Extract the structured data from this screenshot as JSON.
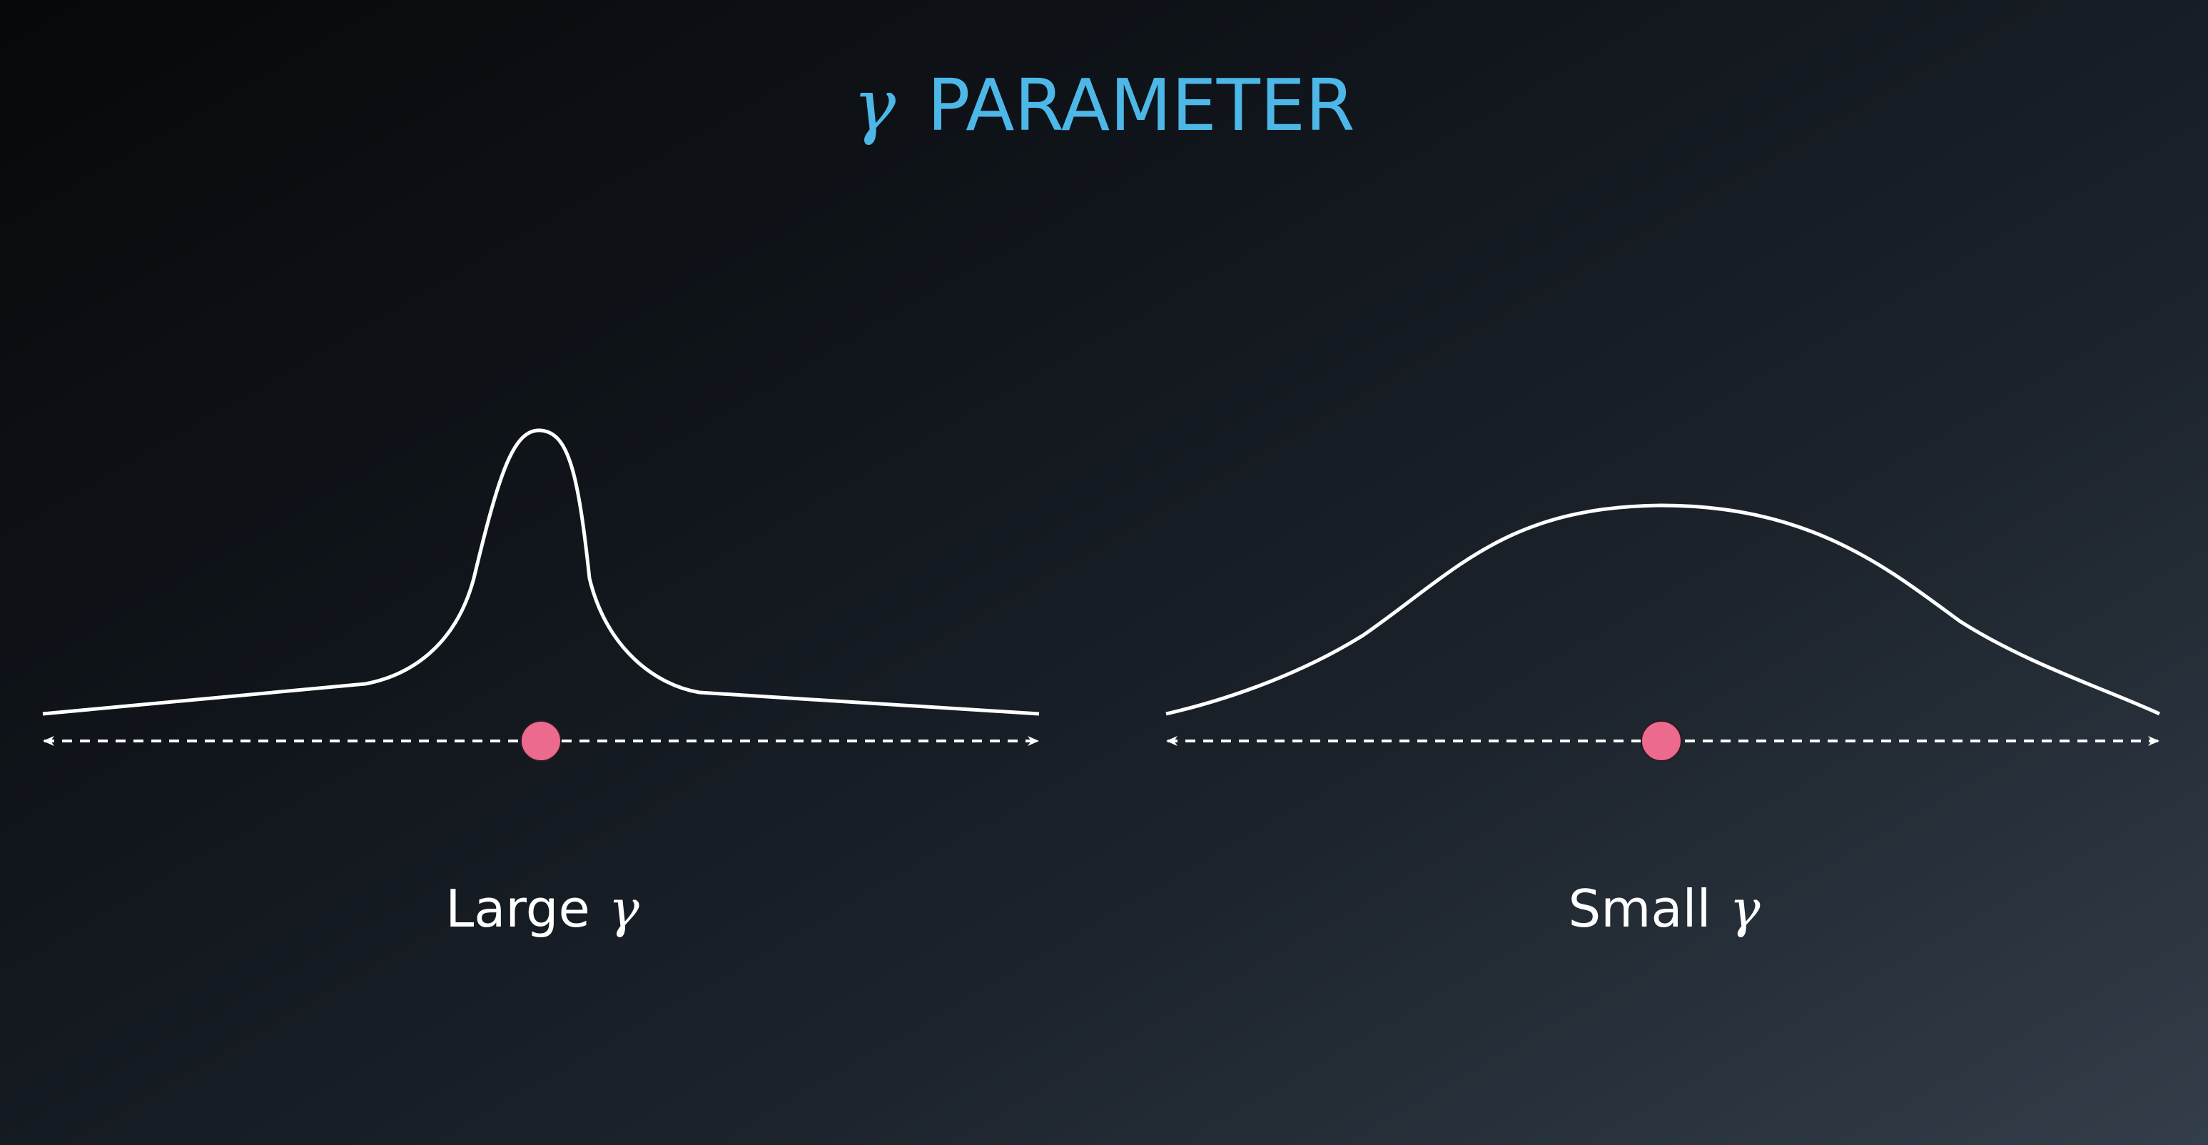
{
  "title": {
    "symbol": "γ",
    "text": "PARAMETER",
    "color": "#4db8e8"
  },
  "panels": [
    {
      "label": "Large",
      "symbol": "γ",
      "curve": "narrow-peak"
    },
    {
      "label": "Small",
      "symbol": "γ",
      "curve": "wide-peak"
    }
  ],
  "colors": {
    "curve": "#ffffff",
    "axis": "#ffffff",
    "point": "#ec6a8e"
  }
}
